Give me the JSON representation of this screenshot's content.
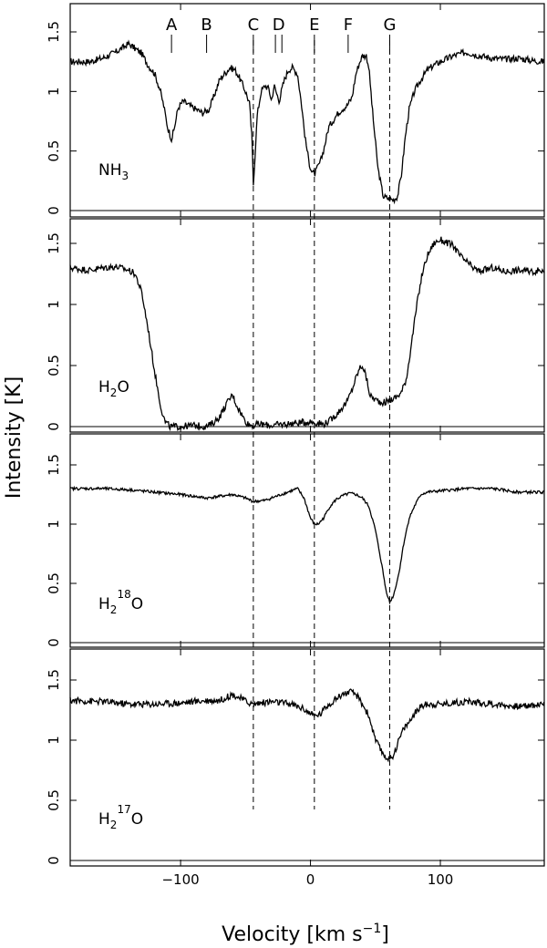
{
  "chart_data": {
    "type": "line",
    "xlabel": "Velocity [km s",
    "xlabel_sup": "−1",
    "xlabel_close": "]",
    "ylabel": "Intensity [K]",
    "xlim": [
      -185,
      180
    ],
    "xticks": [
      -100,
      0,
      100
    ],
    "xtick_labels": [
      "−100",
      "0",
      "100"
    ],
    "components": [
      {
        "label": "A",
        "velocity": -107
      },
      {
        "label": "B",
        "velocity": -80
      },
      {
        "label": "C",
        "velocity": -44
      },
      {
        "label": "D",
        "velocity": -27,
        "velocity2": -22
      },
      {
        "label": "E",
        "velocity": 3
      },
      {
        "label": "F",
        "velocity": 29
      },
      {
        "label": "G",
        "velocity": 61
      }
    ],
    "dashed_lines": [
      -44,
      3,
      61
    ],
    "panels": [
      {
        "base": "NH",
        "sub": "3",
        "sup": "",
        "rest": "",
        "ylim": [
          0,
          1.7
        ],
        "yticks": [
          0,
          0.5,
          1,
          1.5
        ],
        "ytick_labels": [
          "0",
          "0.5",
          "1",
          "1.5"
        ],
        "x": [
          -185,
          -170,
          -160,
          -150,
          -140,
          -130,
          -125,
          -120,
          -116,
          -113,
          -110,
          -107,
          -105,
          -102,
          -98,
          -93,
          -88,
          -83,
          -78,
          -73,
          -70,
          -66,
          -62,
          -58,
          -54,
          -50,
          -47,
          -45,
          -44,
          -43,
          -41,
          -38,
          -35,
          -32,
          -30,
          -28,
          -26,
          -24,
          -22,
          -20,
          -17,
          -14,
          -10,
          -7,
          -4,
          -1,
          1,
          3,
          5,
          8,
          11,
          14,
          17,
          20,
          24,
          28,
          32,
          35,
          38,
          40,
          43,
          45,
          48,
          52,
          56,
          60,
          64,
          67,
          70,
          73,
          76,
          80,
          85,
          90,
          95,
          100,
          110,
          120,
          130,
          140,
          150,
          160,
          170,
          180
        ],
        "y": [
          1.25,
          1.25,
          1.28,
          1.33,
          1.4,
          1.32,
          1.22,
          1.15,
          1.02,
          0.88,
          0.7,
          0.6,
          0.68,
          0.86,
          0.92,
          0.88,
          0.85,
          0.82,
          0.85,
          1.0,
          1.1,
          1.15,
          1.2,
          1.18,
          1.1,
          1.0,
          0.9,
          0.6,
          0.22,
          0.4,
          0.8,
          1.0,
          1.05,
          1.02,
          0.92,
          1.05,
          0.98,
          0.92,
          1.02,
          1.1,
          1.18,
          1.2,
          1.15,
          0.9,
          0.6,
          0.4,
          0.33,
          0.3,
          0.35,
          0.42,
          0.55,
          0.7,
          0.75,
          0.8,
          0.85,
          0.88,
          0.95,
          1.15,
          1.25,
          1.3,
          1.3,
          1.2,
          0.8,
          0.35,
          0.12,
          0.1,
          0.09,
          0.12,
          0.3,
          0.62,
          0.85,
          1.0,
          1.1,
          1.18,
          1.22,
          1.25,
          1.3,
          1.33,
          1.3,
          1.28,
          1.27,
          1.28,
          1.26,
          1.25
        ]
      },
      {
        "base": "H",
        "sub": "2",
        "sup": "",
        "rest": "O",
        "ylim": [
          0,
          1.7
        ],
        "yticks": [
          0,
          0.5,
          1,
          1.5
        ],
        "ytick_labels": [
          "0",
          "0.5",
          "1",
          "1.5"
        ],
        "x": [
          -185,
          -170,
          -160,
          -150,
          -140,
          -135,
          -130,
          -125,
          -120,
          -115,
          -112,
          -108,
          -100,
          -90,
          -80,
          -75,
          -70,
          -65,
          -62,
          -60,
          -57,
          -54,
          -51,
          -48,
          -44,
          -40,
          -30,
          -20,
          -10,
          0,
          10,
          15,
          20,
          24,
          28,
          32,
          35,
          38,
          40,
          42,
          44,
          46,
          50,
          54,
          58,
          62,
          66,
          70,
          74,
          78,
          82,
          86,
          90,
          95,
          100,
          110,
          115,
          120,
          125,
          130,
          140,
          150,
          160,
          170,
          180
        ],
        "y": [
          1.3,
          1.28,
          1.3,
          1.31,
          1.28,
          1.25,
          1.1,
          0.8,
          0.45,
          0.15,
          0.04,
          0.0,
          0.0,
          0.01,
          0.0,
          0.03,
          0.08,
          0.18,
          0.23,
          0.26,
          0.18,
          0.12,
          0.06,
          0.02,
          0.01,
          0.02,
          0.01,
          0.02,
          0.03,
          0.04,
          0.02,
          0.05,
          0.1,
          0.15,
          0.2,
          0.3,
          0.4,
          0.48,
          0.5,
          0.44,
          0.35,
          0.25,
          0.22,
          0.2,
          0.2,
          0.22,
          0.24,
          0.28,
          0.4,
          0.7,
          1.0,
          1.25,
          1.4,
          1.5,
          1.53,
          1.48,
          1.4,
          1.35,
          1.3,
          1.27,
          1.3,
          1.27,
          1.28,
          1.27,
          1.28
        ]
      },
      {
        "base": "H",
        "sub": "2",
        "sup": "18",
        "rest": "O",
        "ylim": [
          0,
          1.7
        ],
        "yticks": [
          0,
          0.5,
          1,
          1.5
        ],
        "ytick_labels": [
          "0",
          "0.5",
          "1",
          "1.5"
        ],
        "x": [
          -185,
          -160,
          -140,
          -120,
          -100,
          -80,
          -60,
          -50,
          -44,
          -35,
          -25,
          -15,
          -10,
          -5,
          0,
          3,
          6,
          10,
          15,
          20,
          25,
          30,
          35,
          40,
          45,
          50,
          55,
          58,
          61,
          64,
          68,
          72,
          76,
          80,
          85,
          90,
          100,
          120,
          140,
          160,
          180
        ],
        "y": [
          1.3,
          1.3,
          1.29,
          1.27,
          1.25,
          1.22,
          1.25,
          1.22,
          1.19,
          1.2,
          1.24,
          1.28,
          1.3,
          1.22,
          1.05,
          1.0,
          1.0,
          1.05,
          1.15,
          1.21,
          1.24,
          1.26,
          1.25,
          1.22,
          1.15,
          0.95,
          0.65,
          0.45,
          0.34,
          0.4,
          0.58,
          0.85,
          1.05,
          1.15,
          1.25,
          1.27,
          1.28,
          1.3,
          1.3,
          1.27,
          1.27
        ]
      },
      {
        "base": "H",
        "sub": "2",
        "sup": "17",
        "rest": "O",
        "ylim": [
          0,
          1.7
        ],
        "yticks": [
          0,
          0.5,
          1,
          1.5
        ],
        "ytick_labels": [
          "0",
          "0.5",
          "1",
          "1.5"
        ],
        "x": [
          -185,
          -160,
          -140,
          -120,
          -100,
          -80,
          -70,
          -60,
          -45,
          -30,
          -15,
          -5,
          0,
          3,
          8,
          12,
          18,
          24,
          30,
          35,
          40,
          45,
          50,
          55,
          58,
          61,
          64,
          68,
          72,
          76,
          80,
          85,
          90,
          100,
          120,
          140,
          160,
          180
        ],
        "y": [
          1.33,
          1.32,
          1.3,
          1.3,
          1.31,
          1.33,
          1.33,
          1.38,
          1.3,
          1.32,
          1.3,
          1.26,
          1.22,
          1.2,
          1.22,
          1.28,
          1.33,
          1.38,
          1.4,
          1.38,
          1.3,
          1.2,
          1.0,
          0.9,
          0.86,
          0.84,
          0.88,
          1.0,
          1.1,
          1.15,
          1.22,
          1.28,
          1.3,
          1.3,
          1.32,
          1.3,
          1.28,
          1.3
        ]
      }
    ]
  }
}
